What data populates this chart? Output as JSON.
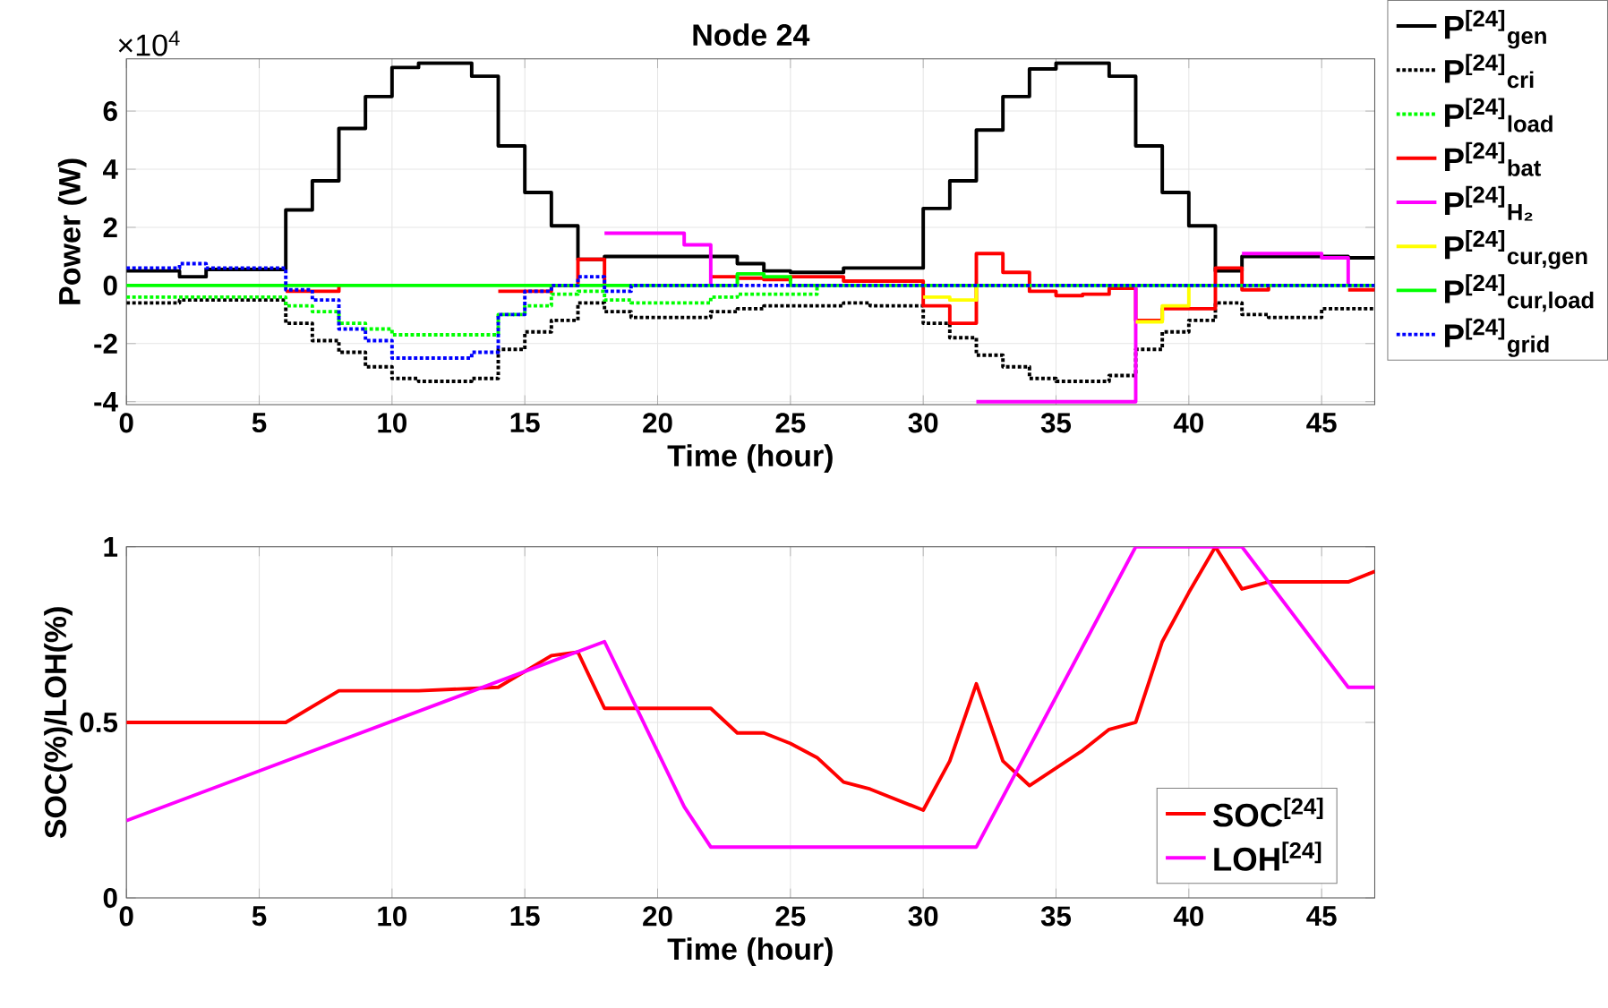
{
  "chart_data": [
    {
      "type": "step",
      "title": "Node 24",
      "xlabel": "Time (hour)",
      "ylabel": "Power (W)",
      "annotations": [
        "×10$^{4}$"
      ],
      "x": [
        0,
        1,
        2,
        3,
        4,
        5,
        6,
        7,
        8,
        9,
        10,
        11,
        12,
        13,
        14,
        15,
        16,
        17,
        18,
        19,
        20,
        21,
        22,
        23,
        24,
        25,
        26,
        27,
        28,
        29,
        30,
        31,
        32,
        33,
        34,
        35,
        36,
        37,
        38,
        39,
        40,
        41,
        42,
        43,
        44,
        45,
        46,
        47
      ],
      "xlim": [
        0,
        47
      ],
      "xticks": [
        0,
        5,
        10,
        15,
        20,
        25,
        30,
        35,
        40,
        45
      ],
      "ylim": [
        -4.1,
        7.8
      ],
      "yticks": [
        -4,
        -2,
        0,
        2,
        4,
        6
      ],
      "grid": true,
      "legend": "right",
      "marker": "none",
      "series": [
        {
          "name": "P$^{[24]}$$_{gen}$",
          "color": "#000000",
          "line_style": "solid",
          "values": [
            0.5,
            0.5,
            0.3,
            0.55,
            0.55,
            0.55,
            2.6,
            3.6,
            5.4,
            6.5,
            7.5,
            7.65,
            7.65,
            7.2,
            4.8,
            3.2,
            2.05,
            0.9,
            1,
            1,
            1,
            1,
            1,
            0.75,
            0.5,
            0.45,
            0.45,
            0.6,
            0.6,
            0.6,
            2.65,
            3.6,
            5.35,
            6.5,
            7.45,
            7.65,
            7.65,
            7.2,
            4.8,
            3.2,
            2.05,
            0.5,
            1,
            1,
            1,
            1,
            0.95,
            0.95
          ]
        },
        {
          "name": "P$^{[24]}$$_{cri}$",
          "color": "#000000",
          "line_style": "dotted",
          "values": [
            -0.6,
            -0.6,
            -0.5,
            -0.5,
            -0.5,
            -0.5,
            -1.3,
            -1.9,
            -2.3,
            -2.8,
            -3.2,
            -3.3,
            -3.3,
            -3.2,
            -2.2,
            -1.6,
            -1.2,
            -0.6,
            -0.9,
            -1.1,
            -1.1,
            -1.1,
            -0.9,
            -0.8,
            -0.7,
            -0.7,
            -0.7,
            -0.6,
            -0.7,
            -0.7,
            -1.3,
            -1.8,
            -2.4,
            -2.8,
            -3.2,
            -3.3,
            -3.3,
            -3.1,
            -2.2,
            -1.6,
            -1.2,
            -0.6,
            -1,
            -1.1,
            -1.1,
            -0.8,
            -0.8,
            -0.8
          ]
        },
        {
          "name": "P$^{[24]}$$_{load}$",
          "color": "#00ff00",
          "line_style": "dotted",
          "values": [
            -0.4,
            -0.4,
            -0.4,
            -0.4,
            -0.4,
            -0.4,
            -0.7,
            -0.9,
            -1.3,
            -1.5,
            -1.7,
            -1.7,
            -1.7,
            -1.7,
            -1,
            -0.7,
            -0.3,
            -0.2,
            -0.5,
            -0.6,
            -0.6,
            -0.6,
            -0.4,
            -0.3,
            -0.3,
            -0.3,
            0,
            null,
            null,
            null,
            null,
            null,
            null,
            null,
            null,
            null,
            null,
            null,
            null,
            null,
            null,
            null,
            null,
            null,
            null,
            null,
            null,
            null
          ]
        },
        {
          "name": "P$^{[24]}$$_{bat}$",
          "color": "#ff0000",
          "line_style": "solid",
          "values": [
            null,
            null,
            null,
            null,
            null,
            null,
            -0.2,
            -0.2,
            0,
            null,
            null,
            null,
            null,
            null,
            -0.2,
            -0.2,
            0,
            0.9,
            0,
            null,
            null,
            null,
            0.3,
            0.25,
            0.2,
            0.3,
            0.3,
            0.15,
            0.15,
            0.15,
            -0.7,
            -1.3,
            1.1,
            0.45,
            -0.2,
            -0.35,
            -0.3,
            -0.1,
            -1.2,
            -0.8,
            -0.8,
            0.6,
            -0.15,
            0,
            null,
            null,
            -0.15,
            -0.15
          ]
        },
        {
          "name": "P$^{[24]}$$_{H₂}$",
          "color": "#ff00ff",
          "line_style": "solid",
          "values": [
            null,
            null,
            null,
            null,
            null,
            null,
            null,
            null,
            null,
            null,
            null,
            null,
            null,
            null,
            null,
            null,
            null,
            null,
            1.8,
            1.8,
            1.8,
            1.4,
            0,
            null,
            null,
            null,
            null,
            null,
            null,
            null,
            null,
            null,
            -4,
            -4,
            -4,
            -4,
            -4,
            -4,
            0,
            null,
            null,
            null,
            1.1,
            1.1,
            1.1,
            0.95,
            0,
            null
          ]
        },
        {
          "name": "P$^{[24]}$$_{cur,gen}$",
          "color": "#ffff00",
          "line_style": "solid",
          "values": [
            null,
            null,
            null,
            null,
            null,
            null,
            null,
            null,
            null,
            null,
            null,
            null,
            null,
            null,
            null,
            null,
            null,
            null,
            null,
            null,
            null,
            null,
            null,
            null,
            null,
            null,
            null,
            null,
            null,
            null,
            -0.4,
            -0.5,
            0,
            null,
            null,
            null,
            null,
            null,
            -1.25,
            -0.7,
            0,
            null,
            null,
            null,
            null,
            null,
            null,
            null
          ]
        },
        {
          "name": "P$^{[24]}$$_{cur,load}$",
          "color": "#00ff00",
          "line_style": "solid",
          "values": [
            0,
            0,
            0,
            0,
            0,
            0,
            0,
            0,
            0,
            0,
            0,
            0,
            0,
            0,
            0,
            0,
            0,
            0,
            0,
            0,
            0,
            0,
            0,
            0.4,
            0.3,
            0,
            0,
            0,
            0,
            0,
            0,
            0,
            0,
            0,
            0,
            0,
            0,
            0,
            0,
            0,
            0,
            0,
            0,
            0,
            0,
            0,
            0,
            0
          ]
        },
        {
          "name": "P$^{[24]}$$_{grid}$",
          "color": "#0000ff",
          "line_style": "dotted",
          "values": [
            0.6,
            0.6,
            0.75,
            0.6,
            0.6,
            0.6,
            -0.15,
            -0.5,
            -1.5,
            -1.9,
            -2.5,
            -2.5,
            -2.5,
            -2.3,
            -1,
            -0.2,
            0,
            0.3,
            -0.2,
            0,
            0,
            0,
            0,
            0,
            0,
            0,
            0,
            0,
            0,
            0,
            0,
            0,
            0,
            0,
            0,
            0,
            0,
            0,
            0,
            0,
            0,
            0,
            0,
            0,
            0,
            0,
            0,
            0
          ]
        }
      ]
    },
    {
      "type": "line",
      "xlabel": "Time (hour)",
      "ylabel": "SOC(%)/LOH(%)",
      "xlim": [
        0,
        47
      ],
      "xticks": [
        0,
        5,
        10,
        15,
        20,
        25,
        30,
        35,
        40,
        45
      ],
      "ylim": [
        0,
        1
      ],
      "yticks": [
        0,
        0.5,
        1
      ],
      "grid": true,
      "legend": "bottom right",
      "marker": "none",
      "series": [
        {
          "name": "SOC$^{[24]}$",
          "color": "#ff0000",
          "line_style": "solid",
          "x": [
            0,
            6,
            8,
            11,
            14,
            16,
            17,
            18,
            22,
            23,
            24,
            25,
            26,
            27,
            28,
            29,
            30,
            31,
            32,
            33,
            34,
            35,
            36,
            37,
            38,
            39,
            40,
            41,
            42,
            43,
            44,
            45,
            46,
            47
          ],
          "values": [
            0.5,
            0.5,
            0.59,
            0.59,
            0.6,
            0.69,
            0.7,
            0.54,
            0.54,
            0.47,
            0.47,
            0.44,
            0.4,
            0.33,
            0.31,
            0.28,
            0.25,
            0.39,
            0.61,
            0.39,
            0.32,
            0.37,
            0.42,
            0.48,
            0.5,
            0.73,
            0.87,
            1.0,
            0.88,
            0.9,
            0.9,
            0.9,
            0.9,
            0.93
          ]
        },
        {
          "name": "LOH$^{[24]}$",
          "color": "#ff00ff",
          "line_style": "solid",
          "x": [
            0,
            18,
            21,
            22,
            32,
            38,
            42,
            46,
            47
          ],
          "values": [
            0.22,
            0.73,
            0.26,
            0.145,
            0.145,
            1.0,
            1.0,
            0.6,
            0.6
          ]
        }
      ]
    }
  ]
}
